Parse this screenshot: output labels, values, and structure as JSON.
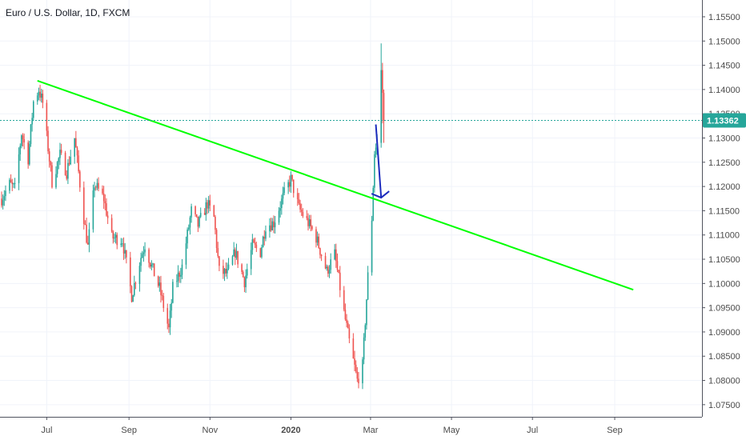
{
  "chart_data": {
    "type": "candlestick",
    "title": "Euro / U.S. Dollar, 1D, FXCM",
    "grid": true,
    "y_axis": {
      "position": "right",
      "range": [
        1.0725,
        1.1578
      ],
      "ticks": [
        "1.07500",
        "1.08000",
        "1.08500",
        "1.09000",
        "1.09500",
        "1.10000",
        "1.10500",
        "1.11000",
        "1.11500",
        "1.12000",
        "1.12500",
        "1.13000",
        "1.13500",
        "1.14000",
        "1.14500",
        "1.15000",
        "1.15500"
      ]
    },
    "x_axis": {
      "range": [
        "2019-05-28",
        "2020-10-20"
      ],
      "ticks": [
        {
          "date": "2019-07-01",
          "label": "Jul",
          "bold": false
        },
        {
          "date": "2019-09-01",
          "label": "Sep",
          "bold": false
        },
        {
          "date": "2019-11-01",
          "label": "Nov",
          "bold": false
        },
        {
          "date": "2020-01-01",
          "label": "2020",
          "bold": true
        },
        {
          "date": "2020-03-01",
          "label": "Mar",
          "bold": false
        },
        {
          "date": "2020-05-01",
          "label": "May",
          "bold": false
        },
        {
          "date": "2020-07-01",
          "label": "Jul",
          "bold": false
        },
        {
          "date": "2020-09-01",
          "label": "Sep",
          "bold": false
        }
      ]
    },
    "current_price": {
      "value": 1.13362,
      "label": "1.13362",
      "color": "#26a69a"
    },
    "colors": {
      "up": "#26a69a",
      "down": "#ef5350",
      "trendline": "#00ff00",
      "arrow": "#1c2bbd",
      "grid": "#f0f3fa",
      "axis_text": "#4a4a4a"
    },
    "trendline": {
      "start": {
        "date": "2019-06-24",
        "price": 1.1418
      },
      "end": {
        "date": "2020-09-15",
        "price": 1.0987
      }
    },
    "arrow": {
      "start": {
        "date": "2020-03-05",
        "price": 1.1328
      },
      "end": {
        "date": "2020-03-09",
        "price": 1.1177
      }
    },
    "anchors": [
      [
        "2019-05-28",
        1.1175
      ],
      [
        "2019-06-03",
        1.1205
      ],
      [
        "2019-06-07",
        1.1195
      ],
      [
        "2019-06-12",
        1.131
      ],
      [
        "2019-06-17",
        1.1258
      ],
      [
        "2019-06-21",
        1.1375
      ],
      [
        "2019-06-25",
        1.14
      ],
      [
        "2019-06-28",
        1.1372
      ],
      [
        "2019-07-05",
        1.121
      ],
      [
        "2019-07-11",
        1.1265
      ],
      [
        "2019-07-16",
        1.123
      ],
      [
        "2019-07-22",
        1.13
      ],
      [
        "2019-07-29",
        1.1135
      ],
      [
        "2019-08-01",
        1.1075
      ],
      [
        "2019-08-06",
        1.1205
      ],
      [
        "2019-08-13",
        1.1175
      ],
      [
        "2019-08-19",
        1.1095
      ],
      [
        "2019-08-27",
        1.109
      ],
      [
        "2019-09-03",
        1.0975
      ],
      [
        "2019-09-10",
        1.1055
      ],
      [
        "2019-09-13",
        1.108
      ],
      [
        "2019-09-18",
        1.1035
      ],
      [
        "2019-09-24",
        1.099
      ],
      [
        "2019-10-01",
        1.0905
      ],
      [
        "2019-10-04",
        1.099
      ],
      [
        "2019-10-11",
        1.1035
      ],
      [
        "2019-10-18",
        1.115
      ],
      [
        "2019-10-23",
        1.112
      ],
      [
        "2019-10-30",
        1.1165
      ],
      [
        "2019-11-04",
        1.1135
      ],
      [
        "2019-11-08",
        1.1025
      ],
      [
        "2019-11-14",
        1.102
      ],
      [
        "2019-11-20",
        1.1065
      ],
      [
        "2019-11-27",
        1.1005
      ],
      [
        "2019-12-03",
        1.1078
      ],
      [
        "2019-12-09",
        1.1065
      ],
      [
        "2019-12-13",
        1.112
      ],
      [
        "2019-12-19",
        1.1125
      ],
      [
        "2019-12-27",
        1.1185
      ],
      [
        "2020-01-01",
        1.1215
      ],
      [
        "2020-01-07",
        1.1155
      ],
      [
        "2020-01-14",
        1.1125
      ],
      [
        "2020-01-20",
        1.1095
      ],
      [
        "2020-01-28",
        1.1025
      ],
      [
        "2020-02-03",
        1.106
      ],
      [
        "2020-02-10",
        1.094
      ],
      [
        "2020-02-14",
        1.088
      ],
      [
        "2020-02-20",
        1.08
      ],
      [
        "2020-02-24",
        1.083
      ],
      [
        "2020-02-28",
        1.1015
      ],
      [
        "2020-03-02",
        1.1135
      ],
      [
        "2020-03-04",
        1.127
      ],
      [
        "2020-03-06",
        1.129
      ],
      [
        "2020-03-09",
        1.144
      ],
      [
        "2020-03-10",
        1.1393
      ],
      [
        "2020-03-11",
        1.134
      ]
    ]
  }
}
